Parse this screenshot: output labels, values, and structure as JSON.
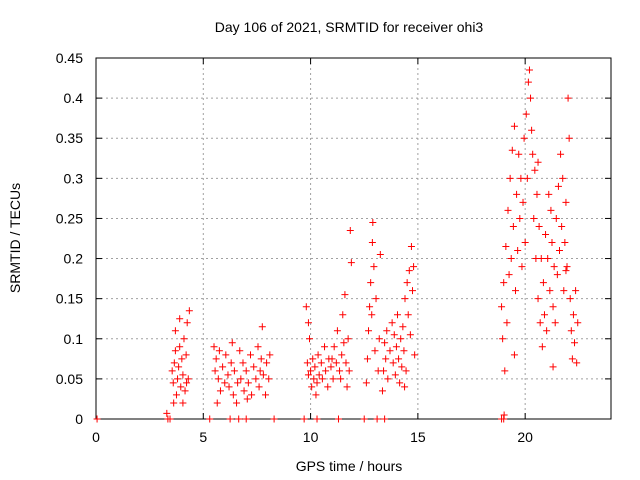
{
  "chart_data": {
    "type": "scatter",
    "title": "Day 106 of 2021, SRMTID for receiver ohi3",
    "xlabel": "GPS time / hours",
    "ylabel": "SRMTID / TECUs",
    "xlim": [
      0,
      24
    ],
    "ylim": [
      0,
      0.45
    ],
    "xticks": [
      0,
      5,
      10,
      15,
      20
    ],
    "xtick_labels": [
      "0",
      "5",
      "10",
      "15",
      "20"
    ],
    "yticks": [
      0,
      0.05,
      0.1,
      0.15,
      0.2,
      0.25,
      0.3,
      0.35,
      0.4,
      0.45
    ],
    "ytick_labels": [
      "0",
      "0.05",
      "0.1",
      "0.15",
      "0.2",
      "0.25",
      "0.3",
      "0.35",
      "0.4",
      "0.45"
    ],
    "grid": true,
    "marker": "+",
    "color": "#ff0000",
    "series": [
      {
        "name": "SRMTID",
        "points": [
          [
            0.05,
            0
          ],
          [
            3.35,
            0
          ],
          [
            3.45,
            0
          ],
          [
            5.3,
            0
          ],
          [
            6.25,
            0
          ],
          [
            6.65,
            0
          ],
          [
            7.0,
            0
          ],
          [
            8.3,
            0
          ],
          [
            9.7,
            0
          ],
          [
            10.3,
            0
          ],
          [
            11.3,
            0
          ],
          [
            12.5,
            0
          ],
          [
            13.1,
            0
          ],
          [
            13.45,
            0
          ],
          [
            18.9,
            0
          ],
          [
            19.0,
            0
          ],
          [
            3.3,
            0.007
          ],
          [
            3.55,
            0.06
          ],
          [
            3.6,
            0.045
          ],
          [
            3.65,
            0.07
          ],
          [
            3.7,
            0.11
          ],
          [
            3.75,
            0.03
          ],
          [
            3.8,
            0.05
          ],
          [
            3.85,
            0.065
          ],
          [
            3.9,
            0.09
          ],
          [
            3.95,
            0.04
          ],
          [
            4.0,
            0.075
          ],
          [
            4.05,
            0.055
          ],
          [
            4.1,
            0.1
          ],
          [
            4.15,
            0.035
          ],
          [
            4.2,
            0.08
          ],
          [
            4.25,
            0.12
          ],
          [
            4.3,
            0.05
          ],
          [
            4.35,
            0.135
          ],
          [
            3.62,
            0.02
          ],
          [
            3.9,
            0.125
          ],
          [
            4.05,
            0.02
          ],
          [
            4.22,
            0.045
          ],
          [
            3.7,
            0.085
          ],
          [
            5.5,
            0.09
          ],
          [
            5.55,
            0.06
          ],
          [
            5.6,
            0.075
          ],
          [
            5.7,
            0.05
          ],
          [
            5.75,
            0.085
          ],
          [
            5.8,
            0.035
          ],
          [
            5.9,
            0.065
          ],
          [
            6.0,
            0.045
          ],
          [
            6.05,
            0.08
          ],
          [
            6.15,
            0.055
          ],
          [
            6.2,
            0.04
          ],
          [
            6.3,
            0.07
          ],
          [
            6.4,
            0.03
          ],
          [
            6.45,
            0.06
          ],
          [
            6.55,
            0.02
          ],
          [
            6.6,
            0.045
          ],
          [
            6.7,
            0.085
          ],
          [
            6.75,
            0.05
          ],
          [
            6.85,
            0.07
          ],
          [
            6.9,
            0.035
          ],
          [
            7.0,
            0.06
          ],
          [
            7.1,
            0.045
          ],
          [
            7.2,
            0.08
          ],
          [
            7.25,
            0.03
          ],
          [
            7.35,
            0.065
          ],
          [
            7.45,
            0.05
          ],
          [
            7.55,
            0.09
          ],
          [
            7.6,
            0.04
          ],
          [
            7.7,
            0.075
          ],
          [
            7.75,
            0.115
          ],
          [
            7.8,
            0.055
          ],
          [
            7.9,
            0.03
          ],
          [
            7.95,
            0.07
          ],
          [
            8.05,
            0.05
          ],
          [
            8.1,
            0.08
          ],
          [
            5.65,
            0.02
          ],
          [
            6.35,
            0.095
          ],
          [
            7.05,
            0.025
          ],
          [
            7.65,
            0.06
          ],
          [
            9.8,
            0.14
          ],
          [
            9.85,
            0.07
          ],
          [
            9.9,
            0.055
          ],
          [
            9.95,
            0.1
          ],
          [
            10.0,
            0.06
          ],
          [
            10.05,
            0.04
          ],
          [
            10.1,
            0.075
          ],
          [
            10.15,
            0.05
          ],
          [
            10.2,
            0.065
          ],
          [
            10.3,
            0.045
          ],
          [
            10.35,
            0.08
          ],
          [
            10.4,
            0.055
          ],
          [
            10.5,
            0.07
          ],
          [
            10.55,
            0.05
          ],
          [
            10.65,
            0.09
          ],
          [
            10.7,
            0.06
          ],
          [
            10.8,
            0.04
          ],
          [
            10.85,
            0.075
          ],
          [
            10.95,
            0.065
          ],
          [
            11.05,
            0.05
          ],
          [
            11.1,
            0.09
          ],
          [
            11.2,
            0.07
          ],
          [
            11.25,
            0.11
          ],
          [
            11.35,
            0.06
          ],
          [
            11.45,
            0.08
          ],
          [
            11.5,
            0.13
          ],
          [
            11.55,
            0.095
          ],
          [
            11.6,
            0.155
          ],
          [
            11.65,
            0.07
          ],
          [
            11.75,
            0.1
          ],
          [
            11.8,
            0.06
          ],
          [
            11.85,
            0.235
          ],
          [
            11.9,
            0.195
          ],
          [
            11.7,
            0.04
          ],
          [
            9.9,
            0.12
          ],
          [
            10.25,
            0.03
          ],
          [
            11.0,
            0.075
          ],
          [
            11.4,
            0.05
          ],
          [
            12.6,
            0.045
          ],
          [
            12.65,
            0.075
          ],
          [
            12.7,
            0.11
          ],
          [
            12.75,
            0.14
          ],
          [
            12.8,
            0.17
          ],
          [
            12.85,
            0.13
          ],
          [
            12.9,
            0.245
          ],
          [
            12.95,
            0.19
          ],
          [
            13.0,
            0.085
          ],
          [
            13.05,
            0.15
          ],
          [
            13.15,
            0.06
          ],
          [
            13.2,
            0.1
          ],
          [
            13.25,
            0.205
          ],
          [
            13.35,
            0.035
          ],
          [
            13.4,
            0.06
          ],
          [
            13.45,
            0.095
          ],
          [
            13.5,
            0.075
          ],
          [
            13.6,
            0.05
          ],
          [
            13.7,
            0.085
          ],
          [
            13.8,
            0.12
          ],
          [
            13.85,
            0.07
          ],
          [
            13.9,
            0.105
          ],
          [
            13.95,
            0.055
          ],
          [
            14.0,
            0.09
          ],
          [
            14.05,
            0.13
          ],
          [
            14.1,
            0.075
          ],
          [
            14.15,
            0.045
          ],
          [
            14.2,
            0.1
          ],
          [
            14.25,
            0.065
          ],
          [
            14.3,
            0.115
          ],
          [
            14.35,
            0.085
          ],
          [
            14.4,
            0.15
          ],
          [
            14.45,
            0.06
          ],
          [
            14.5,
            0.17
          ],
          [
            14.55,
            0.13
          ],
          [
            14.6,
            0.185
          ],
          [
            14.65,
            0.105
          ],
          [
            14.7,
            0.215
          ],
          [
            14.75,
            0.16
          ],
          [
            14.8,
            0.19
          ],
          [
            14.85,
            0.08
          ],
          [
            12.88,
            0.22
          ],
          [
            14.38,
            0.04
          ],
          [
            13.55,
            0.11
          ],
          [
            18.9,
            0.14
          ],
          [
            18.95,
            0.1
          ],
          [
            19.0,
            0.17
          ],
          [
            19.05,
            0.06
          ],
          [
            19.1,
            0.215
          ],
          [
            19.15,
            0.12
          ],
          [
            19.2,
            0.26
          ],
          [
            19.25,
            0.18
          ],
          [
            19.3,
            0.3
          ],
          [
            19.35,
            0.2
          ],
          [
            19.4,
            0.335
          ],
          [
            19.45,
            0.24
          ],
          [
            19.5,
            0.365
          ],
          [
            19.55,
            0.16
          ],
          [
            19.6,
            0.28
          ],
          [
            19.65,
            0.21
          ],
          [
            19.7,
            0.33
          ],
          [
            19.75,
            0.25
          ],
          [
            19.8,
            0.3
          ],
          [
            19.85,
            0.19
          ],
          [
            19.9,
            0.27
          ],
          [
            19.95,
            0.35
          ],
          [
            20.0,
            0.22
          ],
          [
            20.05,
            0.38
          ],
          [
            20.1,
            0.3
          ],
          [
            20.15,
            0.42
          ],
          [
            20.2,
            0.435
          ],
          [
            20.25,
            0.4
          ],
          [
            20.3,
            0.36
          ],
          [
            20.35,
            0.33
          ],
          [
            20.4,
            0.25
          ],
          [
            20.45,
            0.31
          ],
          [
            20.5,
            0.2
          ],
          [
            20.55,
            0.28
          ],
          [
            20.6,
            0.15
          ],
          [
            20.65,
            0.24
          ],
          [
            20.7,
            0.12
          ],
          [
            20.75,
            0.2
          ],
          [
            20.8,
            0.09
          ],
          [
            20.85,
            0.17
          ],
          [
            20.9,
            0.13
          ],
          [
            20.95,
            0.23
          ],
          [
            21.0,
            0.11
          ],
          [
            21.05,
            0.2
          ],
          [
            21.1,
            0.28
          ],
          [
            21.15,
            0.16
          ],
          [
            21.2,
            0.26
          ],
          [
            21.25,
            0.22
          ],
          [
            21.3,
            0.14
          ],
          [
            21.35,
            0.19
          ],
          [
            21.4,
            0.12
          ],
          [
            21.45,
            0.25
          ],
          [
            21.5,
            0.18
          ],
          [
            21.55,
            0.29
          ],
          [
            21.6,
            0.21
          ],
          [
            21.65,
            0.33
          ],
          [
            21.7,
            0.24
          ],
          [
            21.75,
            0.3
          ],
          [
            21.8,
            0.16
          ],
          [
            21.85,
            0.22
          ],
          [
            21.9,
            0.27
          ],
          [
            21.95,
            0.19
          ],
          [
            22.0,
            0.4
          ],
          [
            22.05,
            0.35
          ],
          [
            22.1,
            0.15
          ],
          [
            22.15,
            0.11
          ],
          [
            22.2,
            0.075
          ],
          [
            22.25,
            0.13
          ],
          [
            22.3,
            0.095
          ],
          [
            22.35,
            0.16
          ],
          [
            22.4,
            0.07
          ],
          [
            22.45,
            0.12
          ],
          [
            19.02,
            0.005
          ],
          [
            19.5,
            0.08
          ],
          [
            20.6,
            0.32
          ],
          [
            21.3,
            0.065
          ],
          [
            21.9,
            0.185
          ]
        ]
      }
    ]
  }
}
